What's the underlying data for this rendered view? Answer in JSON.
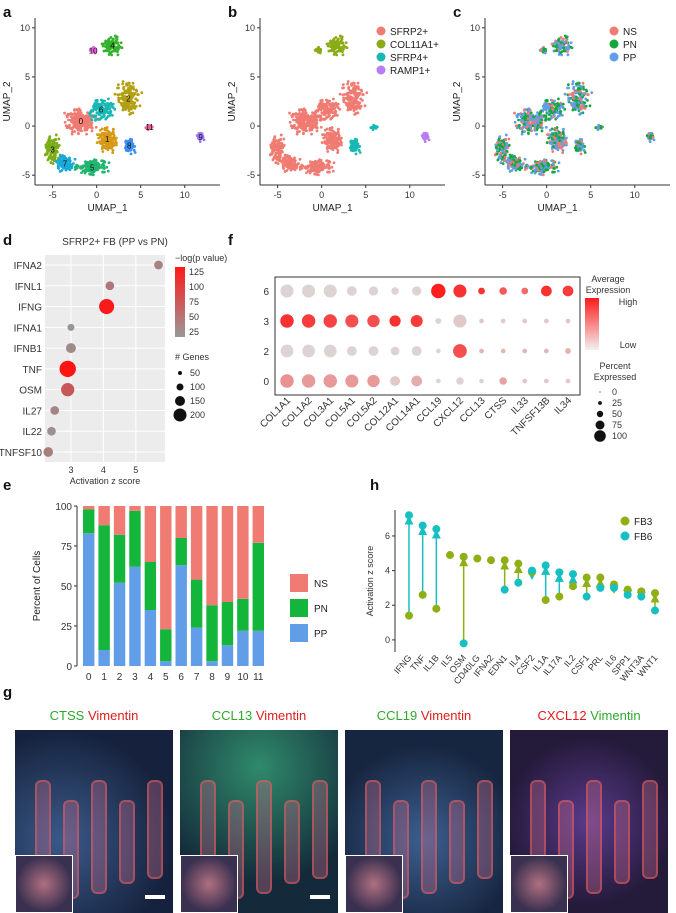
{
  "panels": {
    "a": {
      "label": "a",
      "xlabel": "UMAP_1",
      "ylabel": "UMAP_2",
      "xticks": [
        "-5",
        "0",
        "5",
        "10"
      ],
      "yticks": [
        "10",
        "5",
        "0",
        "-5"
      ],
      "cluster_labels": [
        "0",
        "1",
        "2",
        "3",
        "4",
        "5",
        "6",
        "7",
        "8",
        "9",
        "10",
        "11"
      ]
    },
    "b": {
      "label": "b",
      "xlabel": "UMAP_1",
      "ylabel": "UMAP_2",
      "xticks": [
        "-5",
        "0",
        "5",
        "10"
      ],
      "yticks": [
        "10",
        "5",
        "0",
        "-5"
      ],
      "legend": [
        {
          "name": "SFRP2+",
          "color": "#f07b72"
        },
        {
          "name": "COL11A1+",
          "color": "#8aab17"
        },
        {
          "name": "SFRP4+",
          "color": "#19b8b4"
        },
        {
          "name": "RAMP1+",
          "color": "#b77df5"
        }
      ]
    },
    "c": {
      "label": "c",
      "xlabel": "UMAP_1",
      "ylabel": "UMAP_2",
      "xticks": [
        "-5",
        "0",
        "5",
        "10"
      ],
      "yticks": [
        "10",
        "5",
        "0",
        "-5"
      ],
      "legend": [
        {
          "name": "NS",
          "color": "#f07b72"
        },
        {
          "name": "PN",
          "color": "#13a83a"
        },
        {
          "name": "PP",
          "color": "#629de8"
        }
      ]
    },
    "d": {
      "label": "d",
      "title": "SFRP2+ FB (PP vs PN)",
      "xlabel": "Activation z score",
      "color_legend_title": "−log(p value)",
      "color_ticks": [
        "125",
        "100",
        "75",
        "50",
        "25"
      ],
      "size_legend_title": "# Genes",
      "size_ticks": [
        "50",
        "100",
        "150",
        "200"
      ]
    },
    "e": {
      "label": "e",
      "ylabel": "Percent of Cells",
      "yticks": [
        "0",
        "25",
        "50",
        "75",
        "100"
      ],
      "legend": [
        {
          "name": "NS",
          "color": "#f07b72"
        },
        {
          "name": "PN",
          "color": "#13b63a"
        },
        {
          "name": "PP",
          "color": "#629de8"
        }
      ]
    },
    "f": {
      "label": "f",
      "color_legend_title": "Average Expression",
      "color_high": "High",
      "color_low": "Low",
      "size_legend_title": "Percent Expressed",
      "size_ticks": [
        "0",
        "25",
        "50",
        "75",
        "100"
      ]
    },
    "g": {
      "label": "g",
      "images": [
        {
          "gene": "CTSS",
          "stain": "Vimentin",
          "gene_color": "#2fa82f",
          "stain_color": "#e01b1b"
        },
        {
          "gene": "CCL13",
          "stain": "Vimentin",
          "gene_color": "#2fa82f",
          "stain_color": "#e01b1b"
        },
        {
          "gene": "CCL19",
          "stain": "Vimentin",
          "gene_color": "#2fa82f",
          "stain_color": "#e01b1b"
        },
        {
          "gene": "CXCL12",
          "stain": "Vimentin",
          "gene_color": "#e01b1b",
          "stain_color": "#2fa82f"
        }
      ]
    },
    "h": {
      "label": "h",
      "ylabel": "Activation z score",
      "yticks": [
        "0",
        "2",
        "4",
        "6"
      ],
      "legend": [
        {
          "name": "FB3",
          "color": "#8fb015"
        },
        {
          "name": "FB6",
          "color": "#15bfc2"
        }
      ]
    }
  },
  "chart_data": [
    {
      "type": "scatter",
      "panel": "d",
      "title": "SFRP2+ FB (PP vs PN)",
      "xlabel": "Activation z score",
      "categories": [
        "IFNA2",
        "IFNL1",
        "IFNG",
        "IFNA1",
        "IFNB1",
        "TNF",
        "OSM",
        "IL27",
        "IL22",
        "TNFSF10"
      ],
      "x": [
        5.7,
        4.2,
        4.1,
        3.0,
        3.0,
        2.9,
        2.9,
        2.5,
        2.4,
        2.3
      ],
      "neglog_p": [
        35,
        45,
        120,
        20,
        30,
        125,
        70,
        35,
        25,
        40
      ],
      "n_genes": [
        40,
        40,
        180,
        20,
        60,
        220,
        130,
        40,
        40,
        55
      ],
      "xticks": [
        3,
        4,
        5
      ],
      "xlim": [
        2.2,
        5.9
      ]
    },
    {
      "type": "bar",
      "panel": "e",
      "stacked": true,
      "ylabel": "Percent of Cells",
      "categories": [
        "0",
        "1",
        "2",
        "3",
        "4",
        "5",
        "6",
        "7",
        "8",
        "9",
        "10",
        "11"
      ],
      "series": [
        {
          "name": "PP",
          "values": [
            83,
            10,
            52,
            62,
            35,
            3,
            63,
            24,
            3,
            13,
            22,
            22
          ]
        },
        {
          "name": "PN",
          "values": [
            15,
            78,
            30,
            35,
            30,
            20,
            17,
            30,
            35,
            27,
            20,
            55
          ]
        },
        {
          "name": "NS",
          "values": [
            2,
            12,
            18,
            3,
            35,
            77,
            20,
            46,
            62,
            60,
            58,
            23
          ]
        }
      ],
      "ylim": [
        0,
        100
      ]
    },
    {
      "type": "heatmap",
      "panel": "f",
      "rows": [
        "6",
        "3",
        "2",
        "0"
      ],
      "columns": [
        "COL1A1",
        "COL1A2",
        "COL3A1",
        "COL5A1",
        "COL5A2",
        "COL12A1",
        "COL14A1",
        "CCL19",
        "CXCL12",
        "CCL13",
        "CTSS",
        "IL33",
        "TNFSF13B",
        "IL34"
      ],
      "avg_expression": [
        [
          0.05,
          0.05,
          0.05,
          0.05,
          0.05,
          0.05,
          0.05,
          1.0,
          0.9,
          0.9,
          0.7,
          0.6,
          0.9,
          0.85
        ],
        [
          0.9,
          0.85,
          0.8,
          0.75,
          0.75,
          0.9,
          0.85,
          0.05,
          0.1,
          0.1,
          0.1,
          0.1,
          0.1,
          0.1
        ],
        [
          0.05,
          0.05,
          0.05,
          0.05,
          0.05,
          0.05,
          0.05,
          0.05,
          0.75,
          0.2,
          0.2,
          0.2,
          0.2,
          0.2
        ],
        [
          0.4,
          0.35,
          0.35,
          0.35,
          0.35,
          0.1,
          0.25,
          0.05,
          0.05,
          0.05,
          0.3,
          0.1,
          0.1,
          0.1
        ]
      ],
      "pct_expressed": [
        [
          80,
          80,
          80,
          40,
          35,
          20,
          35,
          100,
          80,
          15,
          20,
          15,
          50,
          50
        ],
        [
          85,
          85,
          85,
          80,
          70,
          55,
          65,
          10,
          80,
          5,
          5,
          5,
          5,
          5
        ],
        [
          75,
          75,
          75,
          40,
          40,
          30,
          40,
          5,
          90,
          5,
          5,
          5,
          5,
          10
        ],
        [
          85,
          85,
          85,
          80,
          70,
          40,
          50,
          5,
          20,
          5,
          20,
          5,
          5,
          5
        ]
      ]
    },
    {
      "type": "scatter",
      "panel": "h",
      "ylabel": "Activation z score",
      "categories": [
        "IFNG",
        "TNF",
        "IL1B",
        "IL5",
        "OSM",
        "CD40LG",
        "IFNA2",
        "EDN1",
        "IL4",
        "CSF2",
        "IL1A",
        "IL17A",
        "IL2",
        "CSF1",
        "PRL",
        "IL6",
        "SPP1",
        "WNT3A",
        "WNT1"
      ],
      "series": [
        {
          "name": "FB3",
          "values": [
            1.4,
            2.6,
            1.8,
            4.9,
            4.8,
            4.7,
            4.6,
            4.6,
            4.4,
            3.9,
            2.3,
            2.5,
            3.1,
            3.6,
            3.6,
            3.2,
            2.9,
            2.8,
            2.7
          ]
        },
        {
          "name": "FB6",
          "values": [
            7.2,
            6.6,
            6.4,
            null,
            -0.2,
            null,
            null,
            2.9,
            3.3,
            4.0,
            4.3,
            3.9,
            3.8,
            2.5,
            3.0,
            3.0,
            2.6,
            2.5,
            1.7
          ]
        }
      ],
      "ylim": [
        -0.7,
        7.5
      ]
    }
  ]
}
